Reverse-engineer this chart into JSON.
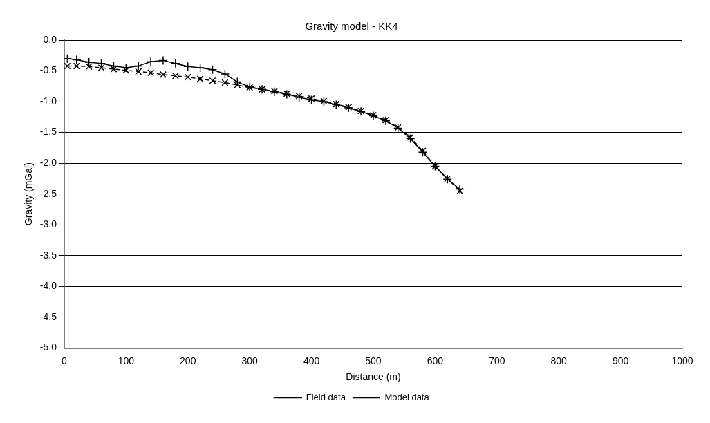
{
  "chart_data": {
    "type": "line",
    "title": "Gravity model - KK4",
    "xlabel": "Distance (m)",
    "ylabel": "Gravity (mGal)",
    "xlim": [
      0,
      1000
    ],
    "xticks": [
      0,
      100,
      200,
      300,
      400,
      500,
      600,
      700,
      800,
      900,
      1000
    ],
    "ylim": [
      -5,
      0
    ],
    "yticks": [
      {
        "value": 0,
        "label": "0.0"
      },
      {
        "value": -0.5,
        "label": "-0.5"
      },
      {
        "value": -1,
        "label": "-1.0"
      },
      {
        "value": -1.5,
        "label": "-1.5"
      },
      {
        "value": -2,
        "label": "-2.0"
      },
      {
        "value": -2.5,
        "label": "-2.5"
      },
      {
        "value": -3,
        "label": "-3.0"
      },
      {
        "value": -3.5,
        "label": "-3.5"
      },
      {
        "value": -4,
        "label": "-4.0"
      },
      {
        "value": -4.5,
        "label": "-4.5"
      },
      {
        "value": -5,
        "label": "-5.0"
      }
    ],
    "grid": "y",
    "legend": "bottom",
    "x": [
      5,
      20,
      40,
      60,
      80,
      100,
      120,
      140,
      160,
      180,
      200,
      220,
      240,
      260,
      280,
      300,
      320,
      340,
      360,
      380,
      400,
      420,
      440,
      460,
      480,
      500,
      520,
      540,
      560,
      580,
      600,
      620,
      640
    ],
    "series": [
      {
        "name": "Field data",
        "color": "#000000",
        "marker": "cross",
        "line_style": "solid",
        "values": [
          -0.3,
          -0.32,
          -0.36,
          -0.38,
          -0.42,
          -0.45,
          -0.42,
          -0.35,
          -0.33,
          -0.38,
          -0.43,
          -0.45,
          -0.48,
          -0.55,
          -0.68,
          -0.76,
          -0.8,
          -0.84,
          -0.88,
          -0.93,
          -0.97,
          -1.0,
          -1.05,
          -1.1,
          -1.16,
          -1.23,
          -1.31,
          -1.43,
          -1.6,
          -1.82,
          -2.05,
          -2.26,
          -2.42
        ]
      },
      {
        "name": "Model data",
        "color": "#000000",
        "marker": "crossRot",
        "line_style": "dashed",
        "values": [
          -0.42,
          -0.42,
          -0.43,
          -0.45,
          -0.47,
          -0.49,
          -0.51,
          -0.53,
          -0.56,
          -0.58,
          -0.6,
          -0.63,
          -0.66,
          -0.69,
          -0.73,
          -0.77,
          -0.8,
          -0.83,
          -0.87,
          -0.91,
          -0.95,
          -0.99,
          -1.04,
          -1.09,
          -1.15,
          -1.22,
          -1.3,
          -1.42,
          -1.58,
          -1.8,
          -2.05,
          -2.25,
          -2.45
        ]
      }
    ]
  }
}
